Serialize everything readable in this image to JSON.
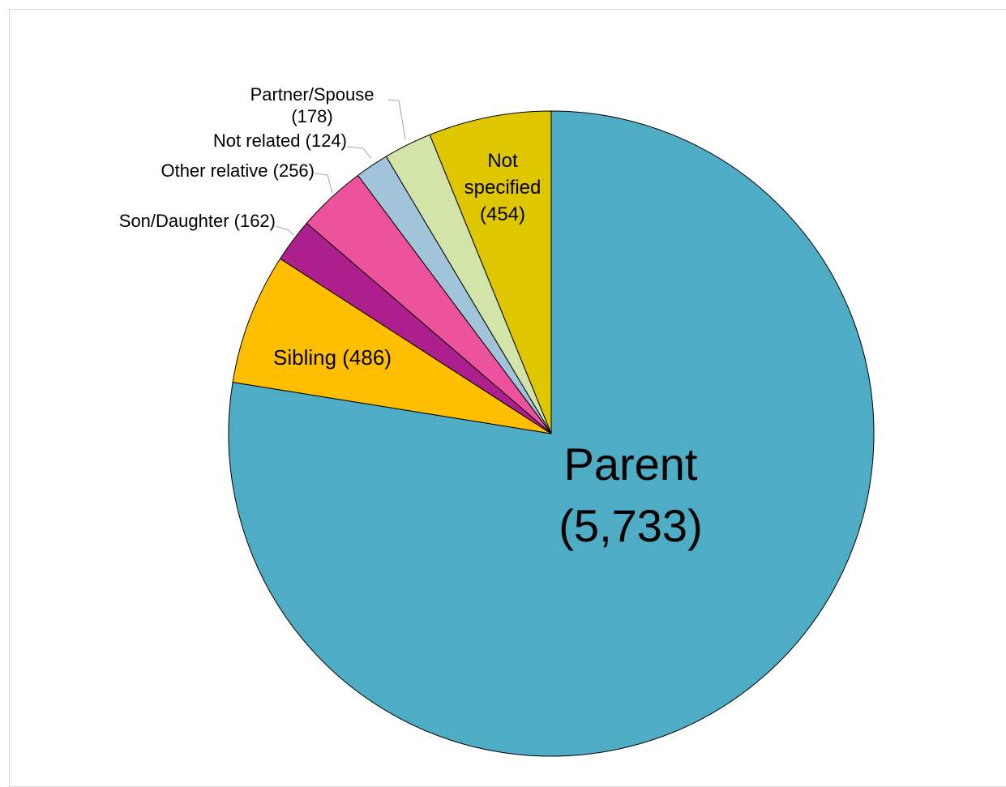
{
  "chart_data": {
    "type": "pie",
    "title": "",
    "start_angle_deg": 0,
    "direction": "clockwise",
    "slices": [
      {
        "name": "Parent",
        "label": "Parent",
        "value_label": "(5,733)",
        "value": 5733,
        "color": "#4EACC5",
        "label_style": "inside-large"
      },
      {
        "name": "Sibling",
        "label": "Sibling",
        "value_label": "(486)",
        "value": 486,
        "color": "#FFBF00",
        "label_style": "inside"
      },
      {
        "name": "Son/Daughter",
        "label": "Son/Daughter",
        "value_label": "(162)",
        "value": 162,
        "color": "#AE1F8E",
        "label_style": "outside"
      },
      {
        "name": "Other relative",
        "label": "Other relative",
        "value_label": "(256)",
        "value": 256,
        "color": "#EC539C",
        "label_style": "outside"
      },
      {
        "name": "Not related",
        "label": "Not related",
        "value_label": "(124)",
        "value": 124,
        "color": "#A2C4DA",
        "label_style": "outside"
      },
      {
        "name": "Partner/Spouse",
        "label": "Partner/Spouse",
        "value_label": "(178)",
        "value": 178,
        "color": "#D2E4A7",
        "label_style": "outside-two-line"
      },
      {
        "name": "Not specified",
        "label": "Not",
        "label_line2": "specified",
        "value_label": "(454)",
        "value": 454,
        "color": "#DEC600",
        "label_style": "inside"
      }
    ]
  }
}
